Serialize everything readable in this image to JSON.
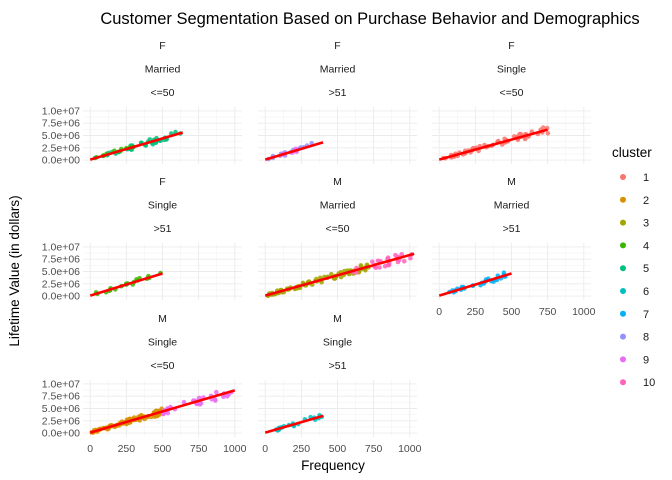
{
  "chart_data": {
    "type": "scatter",
    "title": "Customer Segmentation Based on Purchase Behavior and Demographics",
    "xlabel": "Frequency",
    "ylabel": "Lifetime Value (in dollars)",
    "xlim": [
      0,
      1000
    ],
    "ylim": [
      0,
      10000000
    ],
    "x_ticks": [
      "0",
      "250",
      "500",
      "750",
      "1000"
    ],
    "x_tick_values": [
      0,
      250,
      500,
      750,
      1000
    ],
    "y_ticks": [
      "0.0e+00",
      "2.5e+06",
      "5.0e+06",
      "7.5e+06",
      "1.0e+07"
    ],
    "y_tick_values": [
      0,
      2500000,
      5000000,
      7500000,
      10000000
    ],
    "grid": true,
    "legend": {
      "title": "cluster",
      "placement": "right",
      "items": [
        {
          "label": "1",
          "color": "#F8766D"
        },
        {
          "label": "2",
          "color": "#D89000"
        },
        {
          "label": "3",
          "color": "#A3A500"
        },
        {
          "label": "4",
          "color": "#39B600"
        },
        {
          "label": "5",
          "color": "#00BF7D"
        },
        {
          "label": "6",
          "color": "#00BFC4"
        },
        {
          "label": "7",
          "color": "#00B0F6"
        },
        {
          "label": "8",
          "color": "#9590FF"
        },
        {
          "label": "9",
          "color": "#E76BF3"
        },
        {
          "label": "10",
          "color": "#FF62BC"
        }
      ]
    },
    "trend_color": "#FF0000",
    "facets": [
      {
        "labels": [
          "F",
          "Married",
          "<=50"
        ],
        "trend": [
          [
            0,
            100000
          ],
          [
            640,
            5600000
          ]
        ],
        "clusters": [
          {
            "cluster": "5",
            "x_range": [
              20,
              640
            ],
            "n": 40
          },
          {
            "cluster": "4",
            "x_range": [
              40,
              300
            ],
            "n": 10
          }
        ]
      },
      {
        "labels": [
          "F",
          "Married",
          ">51"
        ],
        "trend": [
          [
            0,
            100000
          ],
          [
            400,
            3600000
          ]
        ],
        "clusters": [
          {
            "cluster": "8",
            "x_range": [
              20,
              400
            ],
            "n": 14
          },
          {
            "cluster": "9",
            "x_range": [
              40,
              300
            ],
            "n": 8
          }
        ]
      },
      {
        "labels": [
          "F",
          "Single",
          "<=50"
        ],
        "trend": [
          [
            0,
            100000
          ],
          [
            750,
            6200000
          ]
        ],
        "clusters": [
          {
            "cluster": "1",
            "x_range": [
              10,
              770
            ],
            "n": 60
          }
        ]
      },
      {
        "labels": [
          "F",
          "Single",
          ">51"
        ],
        "trend": [
          [
            0,
            100000
          ],
          [
            500,
            4600000
          ]
        ],
        "clusters": [
          {
            "cluster": "4",
            "x_range": [
              20,
              500
            ],
            "n": 20
          }
        ]
      },
      {
        "labels": [
          "M",
          "Married",
          "<=50"
        ],
        "trend": [
          [
            0,
            100000
          ],
          [
            1030,
            8600000
          ]
        ],
        "clusters": [
          {
            "cluster": "3",
            "x_range": [
              10,
              720
            ],
            "n": 80
          },
          {
            "cluster": "10",
            "x_range": [
              600,
              1030
            ],
            "n": 25
          }
        ]
      },
      {
        "labels": [
          "M",
          "Married",
          ">51"
        ],
        "trend": [
          [
            0,
            100000
          ],
          [
            500,
            4600000
          ]
        ],
        "clusters": [
          {
            "cluster": "7",
            "x_range": [
              20,
              500
            ],
            "n": 30
          }
        ]
      },
      {
        "labels": [
          "M",
          "Single",
          "<=50"
        ],
        "trend": [
          [
            0,
            100000
          ],
          [
            1000,
            8700000
          ]
        ],
        "clusters": [
          {
            "cluster": "2",
            "x_range": [
              10,
              500
            ],
            "n": 90
          },
          {
            "cluster": "9",
            "x_range": [
              500,
              1000
            ],
            "n": 30
          }
        ]
      },
      {
        "labels": [
          "M",
          "Single",
          ">51"
        ],
        "trend": [
          [
            0,
            100000
          ],
          [
            400,
            3500000
          ]
        ],
        "clusters": [
          {
            "cluster": "6",
            "x_range": [
              20,
              400
            ],
            "n": 20
          }
        ]
      }
    ]
  }
}
